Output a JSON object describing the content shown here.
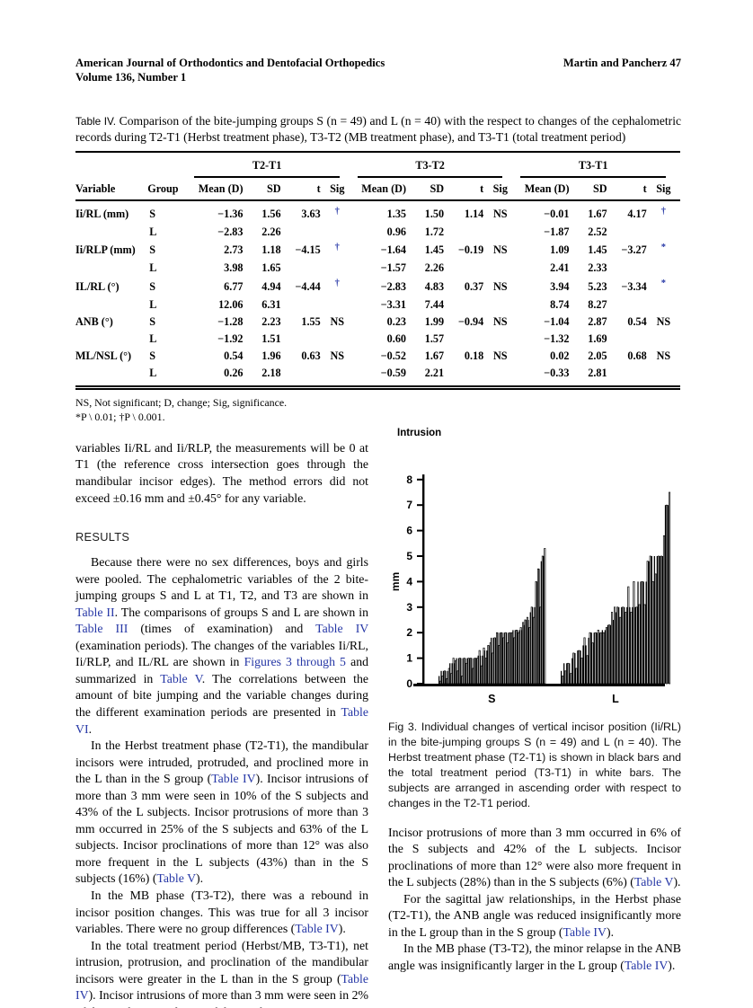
{
  "header": {
    "left_line1": "American Journal of Orthodontics and Dentofacial Orthopedics",
    "left_line2": "Volume 136, Number 1",
    "right": "Martin and Pancherz  47"
  },
  "accent_color": "#2637a6",
  "table": {
    "caption_label": "Table IV.",
    "caption_text": "Comparison of the bite-jumping groups S (n = 49) and L (n = 40) with the respect to changes of the cephalometric records during T2-T1 (Herbst treatment phase), T3-T2 (MB treatment phase), and T3-T1 (total treatment period)",
    "period_headers": [
      "T2-T1",
      "T3-T2",
      "T3-T1"
    ],
    "col_headers": {
      "variable": "Variable",
      "group": "Group",
      "mean": "Mean (D)",
      "sd": "SD",
      "t": "t",
      "sig": "Sig"
    },
    "rows": [
      {
        "variable": "Ii/RL (mm)",
        "group": "S",
        "cells": [
          "−1.36",
          "1.56",
          "3.63",
          "†",
          "1.35",
          "1.50",
          "1.14",
          "NS",
          "−0.01",
          "1.67",
          "4.17",
          "†"
        ]
      },
      {
        "variable": "",
        "group": "L",
        "cells": [
          "−2.83",
          "2.26",
          "",
          "",
          "0.96",
          "1.72",
          "",
          "",
          "−1.87",
          "2.52",
          "",
          ""
        ]
      },
      {
        "variable": "Ii/RLP (mm)",
        "group": "S",
        "cells": [
          "2.73",
          "1.18",
          "−4.15",
          "†",
          "−1.64",
          "1.45",
          "−0.19",
          "NS",
          "1.09",
          "1.45",
          "−3.27",
          "*"
        ]
      },
      {
        "variable": "",
        "group": "L",
        "cells": [
          "3.98",
          "1.65",
          "",
          "",
          "−1.57",
          "2.26",
          "",
          "",
          "2.41",
          "2.33",
          "",
          ""
        ]
      },
      {
        "variable": "IL/RL (°)",
        "group": "S",
        "cells": [
          "6.77",
          "4.94",
          "−4.44",
          "†",
          "−2.83",
          "4.83",
          "0.37",
          "NS",
          "3.94",
          "5.23",
          "−3.34",
          "*"
        ]
      },
      {
        "variable": "",
        "group": "L",
        "cells": [
          "12.06",
          "6.31",
          "",
          "",
          "−3.31",
          "7.44",
          "",
          "",
          "8.74",
          "8.27",
          "",
          ""
        ]
      },
      {
        "variable": "ANB (°)",
        "group": "S",
        "cells": [
          "−1.28",
          "2.23",
          "1.55",
          "NS",
          "0.23",
          "1.99",
          "−0.94",
          "NS",
          "−1.04",
          "2.87",
          "0.54",
          "NS"
        ]
      },
      {
        "variable": "",
        "group": "L",
        "cells": [
          "−1.92",
          "1.51",
          "",
          "",
          "0.60",
          "1.57",
          "",
          "",
          "−1.32",
          "1.69",
          "",
          ""
        ]
      },
      {
        "variable": "ML/NSL (°)",
        "group": "S",
        "cells": [
          "0.54",
          "1.96",
          "0.63",
          "NS",
          "−0.52",
          "1.67",
          "0.18",
          "NS",
          "0.02",
          "2.05",
          "0.68",
          "NS"
        ]
      },
      {
        "variable": "",
        "group": "L",
        "cells": [
          "0.26",
          "2.18",
          "",
          "",
          "−0.59",
          "2.21",
          "",
          "",
          "−0.33",
          "2.81",
          "",
          ""
        ]
      }
    ],
    "footnote1": "NS, Not significant; D, change; Sig, significance.",
    "footnote2": "*P \\ 0.01; †P \\ 0.001."
  },
  "left_column": [
    {
      "i": 0,
      "s": [
        [
          "variables Ii/RL and Ii/RLP, the measurements will be 0 at T1 (the reference cross intersection goes through the mandibular incisor edges). The method errors did not exceed ±0.16 mm and ±0.45° for any variable.",
          0
        ]
      ]
    },
    {
      "h": "RESULTS"
    },
    {
      "i": 1,
      "s": [
        [
          "Because there were no sex differences, boys and girls were pooled. The cephalometric variables of the 2 bite-jumping groups S and L at T1, T2, and T3 are shown in ",
          0
        ],
        [
          "Table II",
          1
        ],
        [
          ". The comparisons of groups S and L are shown in ",
          0
        ],
        [
          "Table III",
          1
        ],
        [
          " (times of examination) and ",
          0
        ],
        [
          "Table IV",
          1
        ],
        [
          " (examination periods). The changes of the variables Ii/RL, Ii/RLP, and IL/RL are shown in ",
          0
        ],
        [
          "Figures 3 through 5",
          1
        ],
        [
          " and summarized in ",
          0
        ],
        [
          "Table V",
          1
        ],
        [
          ". The correlations between the amount of bite jumping and the variable changes during the different examination periods are presented in ",
          0
        ],
        [
          "Table VI",
          1
        ],
        [
          ".",
          0
        ]
      ]
    },
    {
      "i": 1,
      "s": [
        [
          "In the Herbst treatment phase (T2-T1), the mandibular incisors were intruded, protruded, and proclined more in the L than in the S group (",
          0
        ],
        [
          "Table IV",
          1
        ],
        [
          "). Incisor intrusions of more than 3 mm were seen in 10% of the S subjects and 43% of the L subjects. Incisor protrusions of more than 3 mm occurred in 25% of the S subjects and 63% of the L subjects. Incisor proclinations of more than 12° was also more frequent in the L subjects (43%) than in the S subjects (16%) (",
          0
        ],
        [
          "Table V",
          1
        ],
        [
          ").",
          0
        ]
      ]
    },
    {
      "i": 1,
      "s": [
        [
          "In the MB phase (T3-T2), there was a rebound in incisor position changes. This was true for all 3 incisor variables. There were no group differences (",
          0
        ],
        [
          "Table IV",
          1
        ],
        [
          ").",
          0
        ]
      ]
    },
    {
      "i": 1,
      "s": [
        [
          "In the total treatment period (Herbst/MB, T3-T1), net intrusion, protrusion, and proclination of the mandibular incisors were greater in the L than in the S group (",
          0
        ],
        [
          "Table IV",
          1
        ],
        [
          "). Incisor intrusions of more than 3 mm were seen in 2% of the S subjects and 25% of the L subjects.",
          0
        ]
      ]
    }
  ],
  "right_column": [
    {
      "i": 0,
      "s": [
        [
          "Incisor protrusions of more than 3 mm occurred in 6% of the S subjects and 42% of the L subjects. Incisor proclinations of more than 12° were also more frequent in the L subjects (28%) than in the S subjects (6%) (",
          0
        ],
        [
          "Table V",
          1
        ],
        [
          ").",
          0
        ]
      ]
    },
    {
      "i": 1,
      "s": [
        [
          "For the sagittal jaw relationships, in the Herbst phase (T2-T1), the ANB angle was reduced insignificantly more in the L group than in the S group (",
          0
        ],
        [
          "Table IV",
          1
        ],
        [
          ").",
          0
        ]
      ]
    },
    {
      "i": 1,
      "s": [
        [
          "In the MB phase (T3-T2), the minor relapse in the ANB angle was insignificantly larger in the L group (",
          0
        ],
        [
          "Table IV",
          1
        ],
        [
          ").",
          0
        ]
      ]
    }
  ],
  "figure": {
    "caption": "Fig 3. Individual changes of vertical incisor position (Ii/RL) in the bite-jumping groups S (n = 49) and L (n = 40). The Herbst treatment phase (T2-T1) is shown in black bars and the total treatment period (T3-T1) in white bars. The subjects are arranged in ascending order with respect to changes in the T2-T1 period."
  },
  "chart_data": {
    "type": "bar",
    "title": "Intrusion",
    "ylabel": "mm",
    "ylim": [
      0,
      8
    ],
    "yticks": [
      0,
      1,
      2,
      3,
      4,
      5,
      6,
      7,
      8
    ],
    "bar_coding": {
      "black_bars": "T2-T1 (Herbst treatment phase)",
      "white_bars": "T3-T1 (total treatment period)"
    },
    "groups": [
      {
        "label": "S",
        "n": 49,
        "series": [
          {
            "name": "T2-T1 (black)",
            "values": [
              0.3,
              0.5,
              0.5,
              0.5,
              0.5,
              0.8,
              0.8,
              0.8,
              1.0,
              1.0,
              1.0,
              1.0,
              1.0,
              1.0,
              1.0,
              1.0,
              1.0,
              1.0,
              1.1,
              1.1,
              1.1,
              1.3,
              1.3,
              1.5,
              1.8,
              1.8,
              1.8,
              2.0,
              2.0,
              2.0,
              2.0,
              2.0,
              2.0,
              2.0,
              2.1,
              2.1,
              2.1,
              2.1,
              2.1,
              2.3,
              2.5,
              2.5,
              2.8,
              3.0,
              3.0,
              4.0,
              4.5,
              4.8,
              5.0
            ]
          },
          {
            "name": "T3-T1 (white)",
            "values": [
              0.1,
              0.3,
              0.5,
              0.2,
              0.6,
              0.4,
              1.0,
              0.9,
              0.5,
              1.0,
              0.3,
              1.0,
              0.8,
              1.0,
              1.0,
              0.6,
              1.0,
              1.0,
              1.3,
              0.7,
              1.4,
              1.0,
              1.5,
              1.6,
              1.2,
              1.8,
              2.0,
              1.5,
              2.0,
              1.8,
              2.0,
              1.6,
              2.0,
              2.0,
              1.8,
              2.1,
              2.0,
              2.2,
              2.4,
              2.5,
              2.6,
              2.2,
              3.0,
              2.6,
              4.0,
              4.5,
              3.0,
              5.0,
              5.3
            ]
          }
        ]
      },
      {
        "label": "L",
        "n": 40,
        "series": [
          {
            "name": "T2-T1 (black)",
            "values": [
              0.5,
              0.8,
              0.8,
              0.8,
              1.0,
              1.2,
              1.3,
              1.3,
              1.5,
              1.5,
              1.8,
              2.0,
              2.0,
              2.0,
              2.0,
              2.1,
              2.1,
              2.3,
              2.3,
              2.5,
              2.8,
              3.0,
              3.0,
              3.0,
              3.0,
              3.0,
              3.0,
              3.0,
              4.0,
              4.0,
              4.0,
              4.0,
              4.8,
              5.0,
              5.0,
              5.0,
              5.0,
              5.0,
              7.0,
              7.0
            ]
          },
          {
            "name": "T3-T1 (white)",
            "values": [
              0.3,
              0.5,
              0.8,
              0.4,
              1.2,
              0.6,
              1.3,
              1.0,
              1.8,
              1.1,
              2.0,
              1.6,
              2.0,
              2.1,
              2.0,
              2.0,
              2.2,
              2.3,
              2.8,
              3.0,
              3.0,
              2.6,
              3.0,
              2.8,
              3.8,
              2.8,
              4.0,
              3.0,
              3.1,
              4.0,
              3.1,
              4.8,
              5.0,
              4.0,
              4.3,
              5.0,
              5.0,
              5.8,
              7.0,
              7.5
            ]
          }
        ]
      }
    ]
  }
}
